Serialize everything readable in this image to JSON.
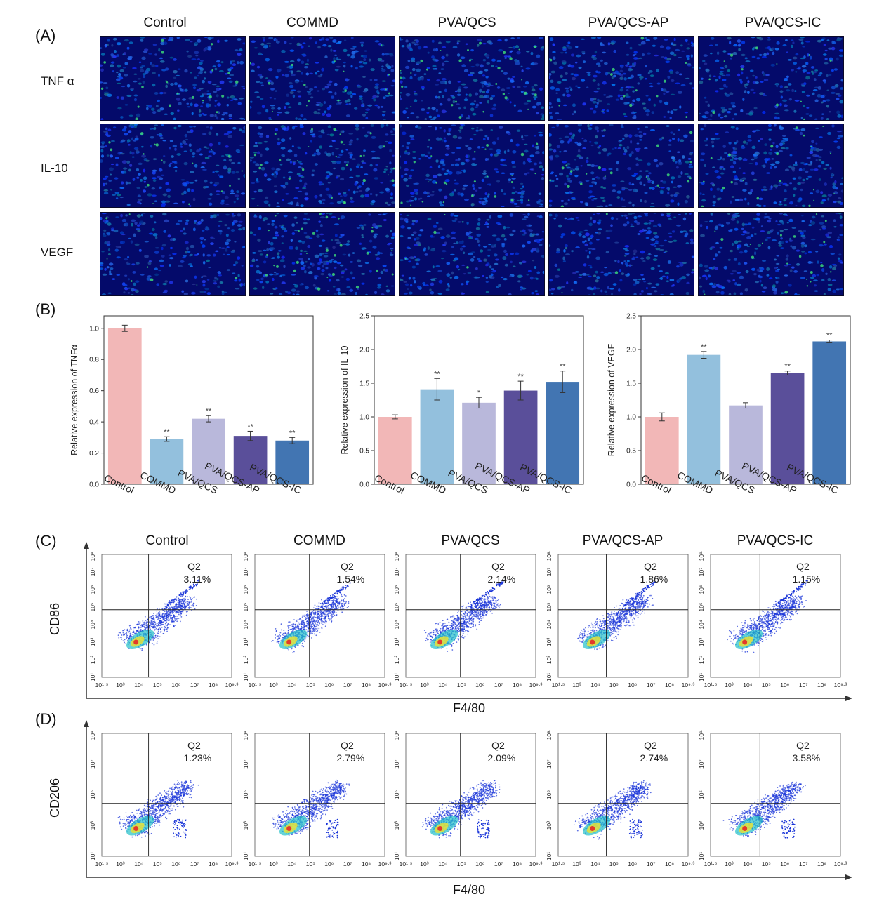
{
  "panels": {
    "A": "(A)",
    "B": "(B)",
    "C": "(C)",
    "D": "(D)"
  },
  "groups": [
    "Control",
    "COMMD",
    "PVA/QCS",
    "PVA/QCS-AP",
    "PVA/QCS-IC"
  ],
  "markers": [
    "TNF α",
    "IL-10",
    "VEGF"
  ],
  "colors": {
    "bars": [
      "#f2b7b7",
      "#93c0dd",
      "#b9b8db",
      "#5a4f9a",
      "#4275b2"
    ],
    "stain_bg": "#0a1fa8",
    "stain_green": "#3ee07a"
  },
  "chart_data": [
    {
      "type": "bar",
      "ylabel": "Relative expression of TNFα",
      "categories": [
        "Control",
        "COMMD",
        "PVA/QCS",
        "PVA/QCS-AP",
        "PVA/QCS-IC"
      ],
      "values": [
        1.0,
        0.29,
        0.42,
        0.31,
        0.28
      ],
      "errors": [
        0.02,
        0.015,
        0.02,
        0.03,
        0.02
      ],
      "significance": [
        "",
        "**",
        "**",
        "**",
        "**"
      ],
      "ylim": [
        0.0,
        1.08
      ],
      "yticks": [
        "0.0",
        "0.2",
        "0.4",
        "0.6",
        "0.8",
        "1.0"
      ],
      "ytick_values": [
        0,
        0.2,
        0.4,
        0.6,
        0.8,
        1.0
      ]
    },
    {
      "type": "bar",
      "ylabel": "Relative expression of IL-10",
      "categories": [
        "Control",
        "COMMD",
        "PVA/QCS",
        "PVA/QCS-AP",
        "PVA/QCS-IC"
      ],
      "values": [
        1.0,
        1.41,
        1.21,
        1.39,
        1.52
      ],
      "errors": [
        0.03,
        0.16,
        0.08,
        0.14,
        0.16
      ],
      "significance": [
        "",
        "**",
        "*",
        "**",
        "**"
      ],
      "ylim": [
        0.0,
        2.5
      ],
      "yticks": [
        "0.0",
        "0.5",
        "1.0",
        "1.5",
        "2.0",
        "2.5"
      ],
      "ytick_values": [
        0,
        0.5,
        1.0,
        1.5,
        2.0,
        2.5
      ]
    },
    {
      "type": "bar",
      "ylabel": "Relative expression of VEGF",
      "categories": [
        "Control",
        "COMMD",
        "PVA/QCS",
        "PVA/QCS-AP",
        "PVA/QCS-IC"
      ],
      "values": [
        1.0,
        1.92,
        1.17,
        1.65,
        2.12
      ],
      "errors": [
        0.06,
        0.05,
        0.04,
        0.03,
        0.02
      ],
      "significance": [
        "",
        "**",
        "",
        "**",
        "**"
      ],
      "ylim": [
        0.0,
        2.5
      ],
      "yticks": [
        "0.0",
        "0.5",
        "1.0",
        "1.5",
        "2.0",
        "2.5"
      ],
      "ytick_values": [
        0,
        0.5,
        1.0,
        1.5,
        2.0,
        2.5
      ]
    }
  ],
  "flow": {
    "C": {
      "yaxis": "CD86",
      "xaxis": "F4/80",
      "quadrant": "Q2",
      "values": [
        "3.11%",
        "1.54%",
        "2.14%",
        "1.86%",
        "1.15%"
      ],
      "yticks": [
        "10¹",
        "10²",
        "10³",
        "10⁴",
        "10⁵",
        "10⁶",
        "10⁷",
        "10⁸·³"
      ],
      "xticks": [
        "10¹·⁵",
        "10³",
        "10⁴",
        "10⁵",
        "10⁶",
        "10⁷",
        "10⁸",
        "10⁹·³"
      ]
    },
    "D": {
      "yaxis": "CD206",
      "xaxis": "F4/80",
      "quadrant": "Q2",
      "values": [
        "1.23%",
        "2.79%",
        "2.09%",
        "2.74%",
        "3.58%"
      ],
      "yticks": [
        "10¹",
        "10³",
        "10⁵",
        "10⁷",
        "10⁹·³"
      ],
      "xticks": [
        "10¹·⁵",
        "10³",
        "10⁴",
        "10⁵",
        "10⁶",
        "10⁷",
        "10⁸",
        "10⁹·³"
      ]
    }
  }
}
